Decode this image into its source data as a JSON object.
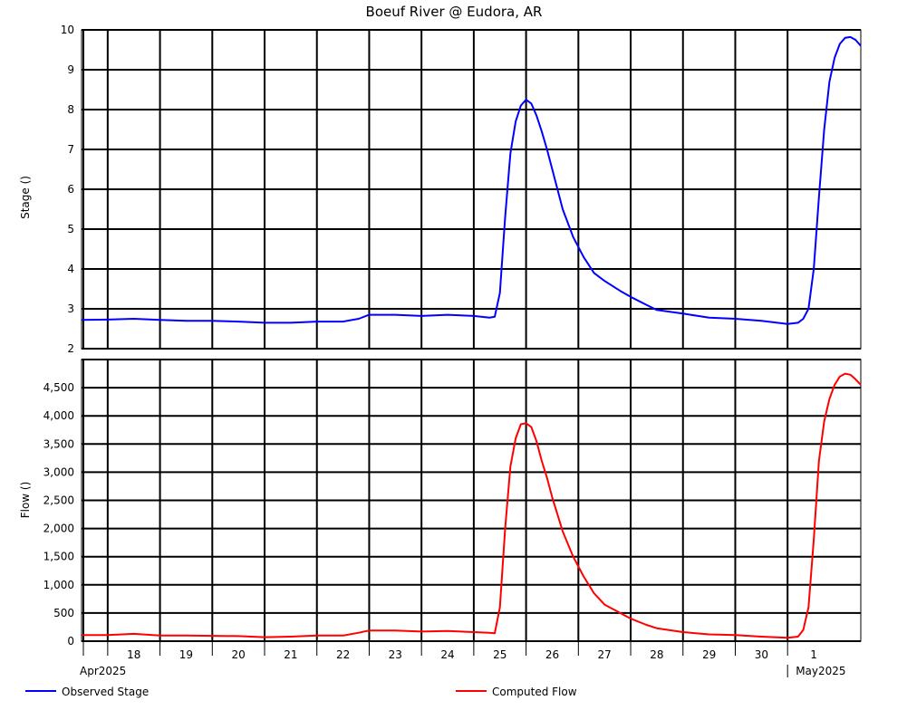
{
  "chart_data": [
    {
      "type": "line",
      "title": "Boeuf River @ Eudora, AR",
      "ylabel": "Stage ()",
      "ylim": [
        2,
        10
      ],
      "yticks": [
        "2",
        "3",
        "4",
        "5",
        "6",
        "7",
        "8",
        "9",
        "10"
      ],
      "grid": true,
      "series": [
        {
          "name": "Observed Stage",
          "color": "#0000ff",
          "x": [
            17.0,
            17.5,
            18.0,
            18.5,
            19.0,
            19.5,
            20.0,
            20.5,
            21.0,
            21.5,
            22.0,
            22.3,
            22.5,
            23.0,
            23.5,
            24.0,
            24.5,
            24.8,
            24.9,
            25.0,
            25.1,
            25.2,
            25.3,
            25.4,
            25.5,
            25.6,
            25.7,
            25.8,
            25.9,
            26.0,
            26.2,
            26.4,
            26.6,
            26.8,
            27.0,
            27.3,
            27.5,
            27.8,
            28.0,
            28.5,
            29.0,
            29.5,
            30.0,
            30.5,
            30.7,
            30.8,
            30.9,
            31.0,
            31.1,
            31.2,
            31.3,
            31.4,
            31.5,
            31.6,
            31.7,
            31.8,
            31.9
          ],
          "y": [
            2.72,
            2.73,
            2.75,
            2.72,
            2.7,
            2.7,
            2.68,
            2.65,
            2.65,
            2.68,
            2.68,
            2.75,
            2.85,
            2.85,
            2.82,
            2.85,
            2.82,
            2.78,
            2.8,
            3.4,
            5.3,
            6.9,
            7.7,
            8.1,
            8.25,
            8.15,
            7.85,
            7.45,
            7.0,
            6.5,
            5.5,
            4.8,
            4.3,
            3.9,
            3.7,
            3.45,
            3.3,
            3.1,
            2.97,
            2.88,
            2.78,
            2.75,
            2.7,
            2.62,
            2.65,
            2.75,
            3.0,
            4.0,
            5.8,
            7.5,
            8.7,
            9.3,
            9.65,
            9.8,
            9.82,
            9.75,
            9.6
          ]
        }
      ]
    },
    {
      "type": "line",
      "ylabel": "Flow ()",
      "ylim": [
        0,
        5000
      ],
      "yticks": [
        "0",
        "500",
        "1,000",
        "1,500",
        "2,000",
        "2,500",
        "3,000",
        "3,500",
        "4,000",
        "4,500"
      ],
      "grid": true,
      "x_tick_labels": [
        "18",
        "19",
        "20",
        "21",
        "22",
        "23",
        "24",
        "25",
        "26",
        "27",
        "28",
        "29",
        "30",
        "1"
      ],
      "x_month_labels": [
        "Apr2025",
        "May2025"
      ],
      "series": [
        {
          "name": "Computed Flow",
          "color": "#ff0000",
          "x": [
            17.0,
            17.5,
            18.0,
            18.5,
            19.0,
            19.5,
            20.0,
            20.5,
            21.0,
            21.5,
            22.0,
            22.3,
            22.5,
            23.0,
            23.5,
            24.0,
            24.5,
            24.8,
            24.9,
            25.0,
            25.1,
            25.2,
            25.3,
            25.4,
            25.5,
            25.6,
            25.7,
            25.8,
            25.9,
            26.0,
            26.2,
            26.4,
            26.6,
            26.8,
            27.0,
            27.3,
            27.5,
            27.8,
            28.0,
            28.5,
            29.0,
            29.5,
            30.0,
            30.5,
            30.7,
            30.8,
            30.9,
            31.0,
            31.1,
            31.2,
            31.3,
            31.4,
            31.5,
            31.6,
            31.7,
            31.8,
            31.9
          ],
          "y": [
            110,
            110,
            130,
            100,
            100,
            95,
            90,
            70,
            80,
            100,
            100,
            150,
            190,
            190,
            170,
            180,
            160,
            150,
            140,
            600,
            2000,
            3100,
            3600,
            3850,
            3870,
            3800,
            3550,
            3200,
            2900,
            2550,
            1950,
            1500,
            1150,
            850,
            650,
            500,
            400,
            290,
            230,
            160,
            120,
            110,
            80,
            60,
            80,
            200,
            600,
            1800,
            3200,
            3900,
            4300,
            4550,
            4700,
            4750,
            4730,
            4650,
            4550
          ]
        }
      ]
    }
  ],
  "legend": {
    "items": [
      {
        "label": "Observed Stage",
        "color": "#0000ff"
      },
      {
        "label": "Computed Flow",
        "color": "#ff0000"
      }
    ]
  }
}
